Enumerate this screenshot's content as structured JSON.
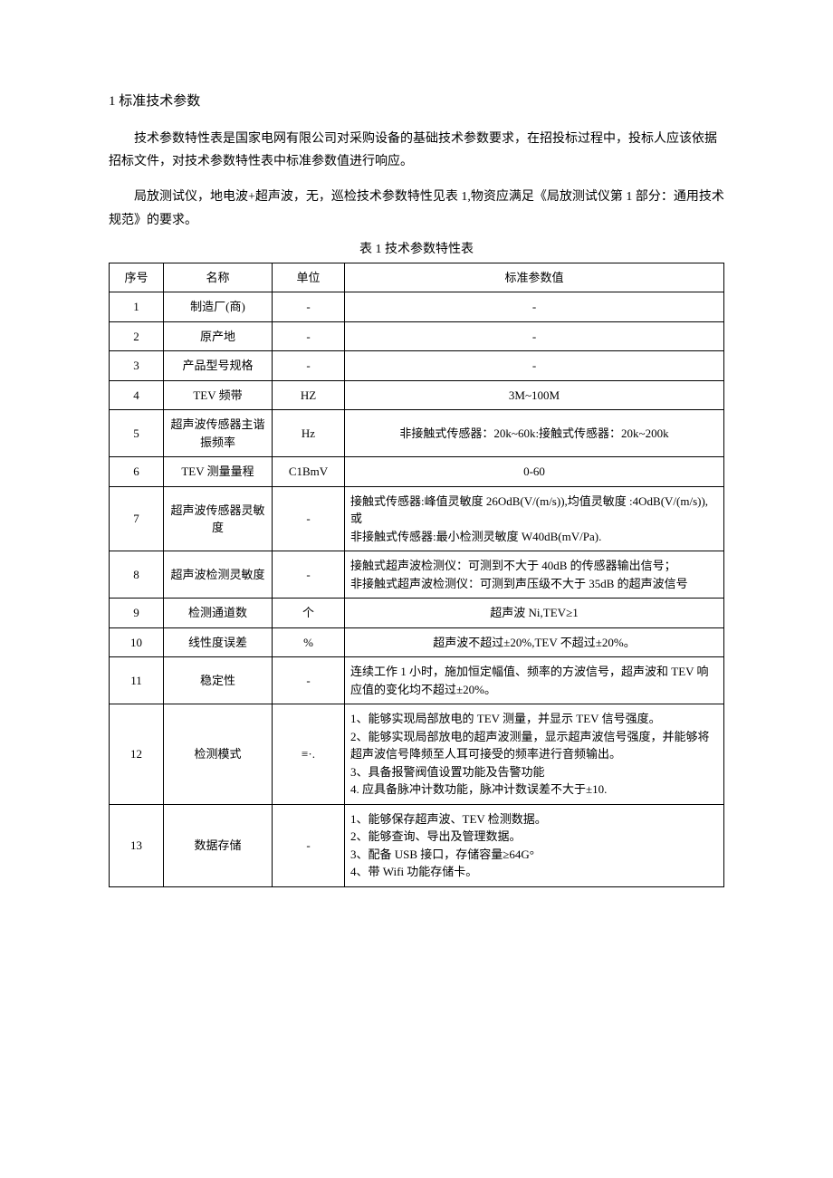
{
  "heading": "1 标准技术参数",
  "para1": "技术参数特性表是国家电网有限公司对采购设备的基础技术参数要求，在招投标过程中，投标人应该依据招标文件，对技术参数特性表中标准参数值进行响应。",
  "para2": "局放测试仪，地电波+超声波，无，巡检技术参数特性见表 1,物资应满足《局放测试仪第 1 部分：通用技术规范》的要求。",
  "table_caption": "表 1 技术参数特性表",
  "columns": [
    "序号",
    "名称",
    "单位",
    "标准参数值"
  ],
  "col_widths": [
    "60px",
    "120px",
    "80px",
    "auto"
  ],
  "rows": [
    {
      "seq": "1",
      "name": "制造厂(商)",
      "unit": "-",
      "value": "-",
      "align": "center"
    },
    {
      "seq": "2",
      "name": "原产地",
      "unit": "-",
      "value": "-",
      "align": "center"
    },
    {
      "seq": "3",
      "name": "产品型号规格",
      "unit": "-",
      "value": "-",
      "align": "center"
    },
    {
      "seq": "4",
      "name": "TEV 频带",
      "unit": "HZ",
      "value": "3M~100M",
      "align": "center"
    },
    {
      "seq": "5",
      "name": "超声波传感器主谐振频率",
      "unit": "Hz",
      "value": "非接触式传感器：20k~60k:接触式传感器：20k~200k",
      "align": "center"
    },
    {
      "seq": "6",
      "name": "TEV 测量量程",
      "unit": "C1BmV",
      "value": "0-60",
      "align": "center"
    },
    {
      "seq": "7",
      "name": "超声波传感器灵敏度",
      "unit": "-",
      "value": "接触式传感器:峰值灵敏度 26OdB(V/(m/s)),均值灵敏度 :4OdB(V/(m/s)),或\n非接触式传感器:最小检测灵敏度 W40dB(mV/Pa).",
      "align": "left"
    },
    {
      "seq": "8",
      "name": "超声波检测灵敏度",
      "unit": "-",
      "value": "接触式超声波检测仪：可测到不大于 40dB 的传感器输出信号；\n非接触式超声波检测仪：可测到声压级不大于 35dB 的超声波信号",
      "align": "left"
    },
    {
      "seq": "9",
      "name": "检测通道数",
      "unit": "个",
      "value": "超声波 Ni,TEV≥1",
      "align": "center"
    },
    {
      "seq": "10",
      "name": "线性度误差",
      "unit": "%",
      "value": "超声波不超过±20%,TEV 不超过±20%。",
      "align": "center"
    },
    {
      "seq": "11",
      "name": "稳定性",
      "unit": "-",
      "value": "连续工作 1 小时，施加恒定幅值、频率的方波信号，超声波和 TEV 响应值的变化均不超过±20%。",
      "align": "left"
    },
    {
      "seq": "12",
      "name": "检测模式",
      "unit": "≡·.",
      "value": "1、能够实现局部放电的 TEV 测量，并显示 TEV 信号强度。\n2、能够实现局部放电的超声波测量，显示超声波信号强度，并能够将超声波信号降频至人耳可接受的频率进行音频输出。\n3、具备报警阀值设置功能及告警功能\n4. 应具备脉冲计数功能，脉冲计数误差不大于±10.",
      "align": "left"
    },
    {
      "seq": "13",
      "name": "数据存储",
      "unit": "-",
      "value": "1、能够保存超声波、TEV 检测数据。\n2、能够查询、导出及管理数据。\n3、配备 USB 接口，存储容量≥64G°\n4、带 Wifi 功能存储卡。",
      "align": "left"
    }
  ]
}
